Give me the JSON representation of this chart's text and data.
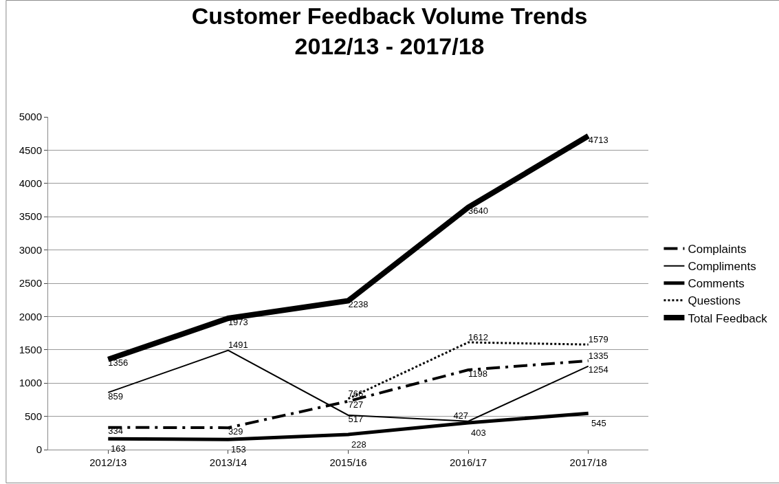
{
  "chart_data": {
    "type": "line",
    "title": "Customer Feedback Volume Trends\n2012/13 - 2017/18",
    "categories": [
      "2012/13",
      "2013/14",
      "2015/16",
      "2016/17",
      "2017/18"
    ],
    "series": [
      {
        "name": "Complaints",
        "color": "#000000",
        "line_style": "dashed",
        "values": [
          334,
          329,
          727,
          1198,
          1335
        ]
      },
      {
        "name": "Compliments",
        "color": "#000000",
        "line_style": "solid",
        "values": [
          859,
          1491,
          517,
          427,
          1254
        ]
      },
      {
        "name": "Comments",
        "color": "#000000",
        "line_style": "solid",
        "values": [
          163,
          153,
          228,
          403,
          545
        ]
      },
      {
        "name": "Questions",
        "color": "#000000",
        "line_style": "dotted",
        "values": [
          null,
          null,
          766,
          1612,
          1579
        ]
      },
      {
        "name": "Total Feedback",
        "color": "#000000",
        "line_style": "solid",
        "values": [
          1356,
          1973,
          2238,
          3640,
          4713
        ]
      }
    ],
    "ylim": [
      0,
      5000
    ],
    "yticks": [
      0,
      500,
      1000,
      1500,
      2000,
      2500,
      3000,
      3500,
      4000,
      4500,
      5000
    ],
    "grid": "y",
    "legend": "right",
    "marker": "none",
    "data_labels": true
  }
}
